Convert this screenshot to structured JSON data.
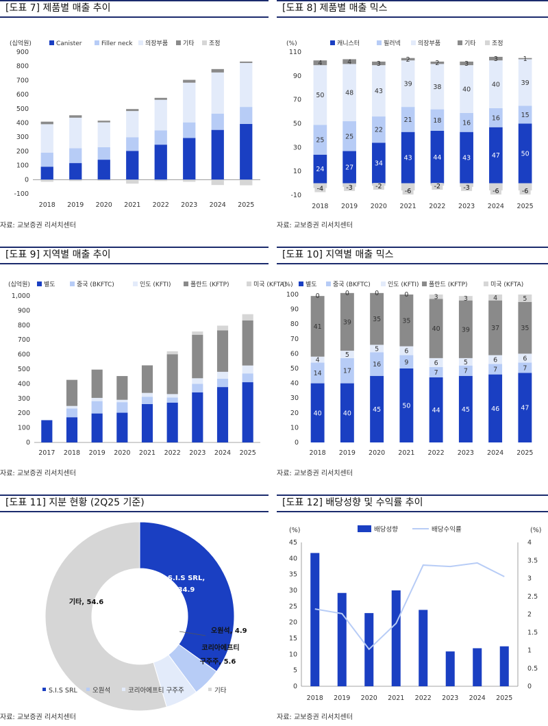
{
  "colors": {
    "c1": "#1a3fc2",
    "c2": "#b7ccf6",
    "c3": "#e3ebfa",
    "c4": "#8a8a8a",
    "c5": "#d6d6d6"
  },
  "source": "자료: 교보증권 리서치센터",
  "chart_data": [
    {
      "id": "p7",
      "type": "bar",
      "stacked": true,
      "title": "[도표 7] 제품별 매출 추이",
      "unit": "(십억원)",
      "categories": [
        "2018",
        "2019",
        "2020",
        "2021",
        "2022",
        "2023",
        "2024",
        "2025"
      ],
      "ylim": [
        -100,
        900
      ],
      "yticks": [
        -100,
        0,
        100,
        200,
        300,
        400,
        500,
        600,
        700,
        800,
        900
      ],
      "series": [
        {
          "name": "Canister",
          "values": [
            91,
            117,
            141,
            203,
            247,
            294,
            351,
            393
          ]
        },
        {
          "name": "Filler neck",
          "values": [
            100,
            105,
            88,
            96,
            101,
            110,
            115,
            120
          ]
        },
        {
          "name": "의장부품",
          "values": [
            200,
            215,
            175,
            185,
            215,
            280,
            290,
            310
          ]
        },
        {
          "name": "기타",
          "values": [
            18,
            17,
            12,
            14,
            14,
            20,
            24,
            10
          ]
        },
        {
          "name": "조정",
          "values": [
            -15,
            -10,
            -8,
            -28,
            -10,
            -15,
            -38,
            -40
          ]
        }
      ]
    },
    {
      "id": "p8",
      "type": "bar",
      "stacked": true,
      "title": "[도표 8] 제품별 매출 믹스",
      "unit": "(%)",
      "categories": [
        "2018",
        "2019",
        "2020",
        "2021",
        "2022",
        "2023",
        "2024",
        "2025"
      ],
      "ylim": [
        -10,
        110
      ],
      "yticks": [
        -10,
        10,
        30,
        50,
        70,
        90,
        110
      ],
      "series": [
        {
          "name": "캐니스터",
          "values": [
            24,
            27,
            34,
            43,
            44,
            43,
            47,
            50
          ]
        },
        {
          "name": "필러넥",
          "values": [
            25,
            25,
            22,
            21,
            18,
            16,
            16,
            15
          ]
        },
        {
          "name": "의장부품",
          "values": [
            50,
            48,
            43,
            39,
            38,
            40,
            40,
            39
          ]
        },
        {
          "name": "기타",
          "values": [
            4,
            4,
            3,
            2,
            2,
            3,
            3,
            1
          ]
        },
        {
          "name": "조정",
          "values": [
            -4,
            -3,
            -2,
            -6,
            -2,
            -3,
            -6,
            -6
          ]
        }
      ]
    },
    {
      "id": "p9",
      "type": "bar",
      "stacked": true,
      "title": "[도표 9] 지역별 매출 추이",
      "unit": "(십억원)",
      "categories": [
        "2017",
        "2018",
        "2019",
        "2020",
        "2021",
        "2022",
        "2023",
        "2024",
        "2025"
      ],
      "ylim": [
        0,
        1000
      ],
      "yticks": [
        0,
        100,
        200,
        300,
        400,
        500,
        600,
        700,
        800,
        900,
        1000
      ],
      "ytickLabels": [
        "0",
        "100",
        "200",
        "300",
        "400",
        "500",
        "600",
        "700",
        "800",
        "900",
        "1,000"
      ],
      "series": [
        {
          "name": "별도",
          "values": [
            152,
            172,
            198,
            203,
            262,
            272,
            342,
            378,
            411
          ]
        },
        {
          "name": "중국 (BKFTC)",
          "values": [
            0,
            60,
            84,
            72,
            50,
            34,
            58,
            57,
            60
          ]
        },
        {
          "name": "인도 (KFTI)",
          "values": [
            0,
            17,
            22,
            16,
            26,
            24,
            38,
            47,
            54
          ]
        },
        {
          "name": "폴란드 (KFTP)",
          "values": [
            0,
            178,
            193,
            162,
            188,
            272,
            297,
            283,
            308
          ]
        },
        {
          "name": "미국 (KFTA)",
          "values": [
            0,
            0,
            0,
            0,
            0,
            20,
            22,
            32,
            42
          ]
        }
      ]
    },
    {
      "id": "p10",
      "type": "bar",
      "stacked": true,
      "title": "[도표 10] 지역별 매출 믹스",
      "unit": "(%)",
      "categories": [
        "2018",
        "2019",
        "2020",
        "2021",
        "2022",
        "2023",
        "2024",
        "2025"
      ],
      "ylim": [
        0,
        100
      ],
      "yticks": [
        0,
        10,
        20,
        30,
        40,
        50,
        60,
        70,
        80,
        90,
        100
      ],
      "series": [
        {
          "name": "별도",
          "values": [
            40,
            40,
            45,
            50,
            44,
            45,
            46,
            47
          ]
        },
        {
          "name": "중국 (BKFTC)",
          "values": [
            14,
            17,
            16,
            9,
            7,
            7,
            7,
            7
          ]
        },
        {
          "name": "인도 (KFTI)",
          "values": [
            4,
            5,
            5,
            6,
            6,
            5,
            6,
            6
          ]
        },
        {
          "name": "폴란드 (KFTP)",
          "values": [
            41,
            39,
            35,
            35,
            40,
            39,
            37,
            35
          ]
        },
        {
          "name": "미국 (KFTA)",
          "values": [
            0,
            0,
            0,
            0,
            3,
            3,
            4,
            5
          ]
        }
      ]
    },
    {
      "id": "p11",
      "type": "pie",
      "donut": true,
      "title": "[도표 11] 지분 현황 (2Q25 기준)",
      "slices": [
        {
          "name": "S.I.S SRL",
          "value": 34.9,
          "label": "S.I.S SRL,\n34.9",
          "legend": "S.I.S SRL"
        },
        {
          "name": "오원석",
          "value": 4.9,
          "label": "오원석, 4.9",
          "legend": "오원석"
        },
        {
          "name": "코리아에프티 구주주",
          "value": 5.6,
          "label": "코리아에프티\n구주주, 5.6",
          "legend": "코리아에프티 구주주"
        },
        {
          "name": "기타",
          "value": 54.6,
          "label": "기타, 54.6",
          "legend": "기타"
        }
      ]
    },
    {
      "id": "p12",
      "type": "bar+line",
      "title": "[도표 12] 배당성향 및 수익률 추이",
      "ylabel_left": "(%)",
      "ylabel_right": "(%)",
      "categories": [
        "2018",
        "2019",
        "2020",
        "2021",
        "2022",
        "2023",
        "2024",
        "2025"
      ],
      "ylim": [
        0,
        45
      ],
      "yticks": [
        0,
        5,
        10,
        15,
        20,
        25,
        30,
        35,
        40,
        45
      ],
      "y2lim": [
        0,
        4
      ],
      "y2ticks": [
        0,
        0.5,
        1,
        1.5,
        2,
        2.5,
        3,
        3.5,
        4
      ],
      "series": [
        {
          "name": "배당성향",
          "type": "bar",
          "values": [
            41.7,
            29.2,
            22.9,
            30.0,
            23.9,
            10.9,
            11.9,
            12.5
          ]
        },
        {
          "name": "배당수익률",
          "type": "line",
          "axis": "right",
          "values": [
            2.15,
            2.02,
            1.03,
            1.75,
            3.37,
            3.33,
            3.43,
            3.05
          ]
        }
      ]
    }
  ]
}
